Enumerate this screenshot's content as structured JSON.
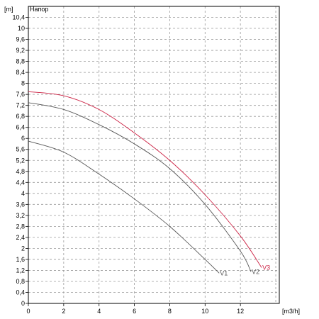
{
  "chart_data": {
    "type": "line",
    "title": "Напор",
    "ylabel": "[m]",
    "xlabel": "[m3/h]",
    "xlim": [
      0,
      14.2
    ],
    "ylim": [
      0,
      10.8
    ],
    "x_ticks": [
      "0",
      "2",
      "4",
      "6",
      "8",
      "10",
      "12"
    ],
    "y_ticks": [
      "0",
      "0,4",
      "0,8",
      "1,2",
      "1,6",
      "2",
      "2,4",
      "2,8",
      "3,2",
      "3,6",
      "4",
      "4,4",
      "4,8",
      "5,2",
      "5,6",
      "6",
      "6,4",
      "6,8",
      "7,2",
      "7,6",
      "8",
      "8,4",
      "8,8",
      "9,2",
      "9,6",
      "10",
      "10,4"
    ],
    "grid": true,
    "series": [
      {
        "name": "V1",
        "color": "#555555",
        "x": [
          0,
          2,
          4,
          6,
          8,
          10,
          10.8
        ],
        "y": [
          5.9,
          5.5,
          4.7,
          3.8,
          2.8,
          1.6,
          1.1
        ]
      },
      {
        "name": "V2",
        "color": "#555555",
        "x": [
          0,
          2,
          4,
          6,
          8,
          10,
          12,
          12.6
        ],
        "y": [
          7.3,
          7.05,
          6.5,
          5.8,
          4.9,
          3.6,
          1.9,
          1.15
        ]
      },
      {
        "name": "V3",
        "color": "#cc2244",
        "x": [
          0,
          2,
          4,
          6,
          8,
          10,
          12,
          13.2
        ],
        "y": [
          7.7,
          7.55,
          7.05,
          6.2,
          5.2,
          3.95,
          2.45,
          1.3
        ]
      }
    ]
  }
}
